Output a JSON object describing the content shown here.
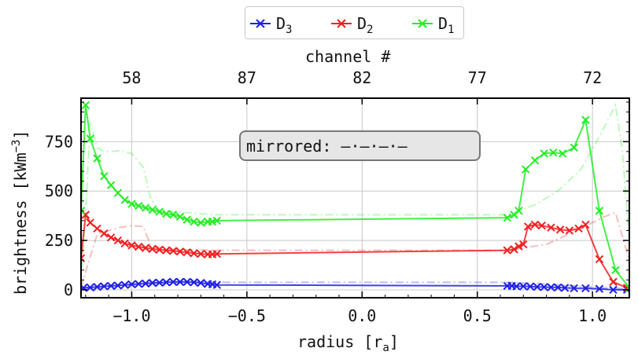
{
  "chart_data": {
    "type": "line",
    "xlabel_main": "radius [r",
    "xlabel_sub": "a",
    "xlabel_close": "]",
    "ylabel_main": "brightness [kWm",
    "ylabel_sup": "−3",
    "ylabel_close": "]",
    "top_axis_label": "channel #",
    "xlim": [
      -1.22,
      1.16
    ],
    "ylim": [
      -40,
      970
    ],
    "x_ticks": [
      -1.0,
      -0.5,
      0.0,
      0.5,
      1.0
    ],
    "x_tick_labels": [
      "−1.0",
      "−0.5",
      "0.0",
      "0.5",
      "1.0"
    ],
    "y_ticks": [
      0,
      250,
      500,
      750
    ],
    "y_tick_labels": [
      "0",
      "250",
      "500",
      "750"
    ],
    "top_ticks": [
      -1.0,
      -0.5,
      0.0,
      0.5,
      1.0
    ],
    "top_tick_labels": [
      "58",
      "87",
      "82",
      "77",
      "72"
    ],
    "grid": true,
    "legend_placement": "top-center, above plot",
    "annotation": "mirrored: —·—·—·—",
    "series": [
      {
        "name": "D3",
        "label_base": "D",
        "label_sub": "3",
        "color": "#1f1fe6",
        "x": [
          -1.21,
          -1.18,
          -1.15,
          -1.12,
          -1.09,
          -1.06,
          -1.03,
          -1.0,
          -0.97,
          -0.94,
          -0.91,
          -0.88,
          -0.85,
          -0.82,
          -0.79,
          -0.76,
          -0.73,
          -0.7,
          -0.67,
          -0.65,
          -0.63,
          0.63,
          0.65,
          0.67,
          0.7,
          0.73,
          0.76,
          0.79,
          0.82,
          0.85,
          0.88,
          0.92,
          0.97,
          1.03,
          1.09,
          1.15
        ],
        "y": [
          10,
          12,
          15,
          18,
          20,
          22,
          25,
          28,
          30,
          32,
          35,
          36,
          38,
          40,
          40,
          40,
          38,
          35,
          30,
          28,
          25,
          20,
          20,
          18,
          18,
          17,
          15,
          14,
          13,
          12,
          10,
          8,
          8,
          5,
          0,
          0
        ],
        "mirror_x": [
          -1.22,
          -1.1,
          -1.0,
          -0.9,
          -0.8,
          -0.7,
          -0.63,
          0.63,
          0.75,
          0.85,
          0.95,
          1.05,
          1.16
        ],
        "mirror_y": [
          5,
          15,
          25,
          32,
          38,
          40,
          38,
          38,
          32,
          25,
          18,
          10,
          5
        ]
      },
      {
        "name": "D2",
        "label_base": "D",
        "label_sub": "2",
        "color": "#f02020",
        "x": [
          -1.22,
          -1.2,
          -1.18,
          -1.15,
          -1.12,
          -1.09,
          -1.06,
          -1.03,
          -1.0,
          -0.97,
          -0.94,
          -0.91,
          -0.88,
          -0.85,
          -0.82,
          -0.79,
          -0.76,
          -0.73,
          -0.7,
          -0.67,
          -0.65,
          -0.63,
          0.63,
          0.66,
          0.68,
          0.7,
          0.72,
          0.75,
          0.78,
          0.82,
          0.86,
          0.9,
          0.94,
          0.97,
          1.03,
          1.09,
          1.15
        ],
        "y": [
          160,
          380,
          340,
          310,
          285,
          265,
          250,
          235,
          225,
          218,
          212,
          207,
          203,
          200,
          197,
          194,
          190,
          185,
          182,
          180,
          180,
          182,
          200,
          205,
          220,
          230,
          320,
          330,
          325,
          315,
          305,
          300,
          310,
          330,
          155,
          40,
          10
        ],
        "mirror_x": [
          -1.22,
          -1.19,
          -1.15,
          -1.1,
          -1.05,
          -1.0,
          -0.95,
          -0.92,
          -0.85,
          -0.63,
          0.63,
          0.8,
          0.95,
          1.05,
          1.1,
          1.16
        ],
        "mirror_y": [
          10,
          130,
          280,
          300,
          315,
          325,
          320,
          230,
          205,
          200,
          200,
          230,
          310,
          370,
          390,
          150
        ],
        "mirror_light": true
      },
      {
        "name": "D1",
        "label_base": "D",
        "label_sub": "1",
        "color": "#22ee22",
        "x": [
          -1.22,
          -1.2,
          -1.18,
          -1.15,
          -1.12,
          -1.09,
          -1.06,
          -1.03,
          -1.0,
          -0.97,
          -0.94,
          -0.91,
          -0.88,
          -0.85,
          -0.82,
          -0.79,
          -0.76,
          -0.73,
          -0.7,
          -0.67,
          -0.65,
          -0.63,
          0.63,
          0.66,
          0.68,
          0.71,
          0.75,
          0.79,
          0.83,
          0.87,
          0.92,
          0.97,
          1.03,
          1.1,
          1.16
        ],
        "y": [
          400,
          935,
          765,
          665,
          575,
          530,
          490,
          455,
          435,
          425,
          415,
          405,
          395,
          385,
          380,
          370,
          355,
          345,
          340,
          345,
          345,
          350,
          365,
          380,
          400,
          610,
          655,
          690,
          695,
          690,
          720,
          860,
          400,
          100,
          10
        ],
        "mirror_x": [
          -1.22,
          -1.2,
          -1.18,
          -1.15,
          -1.12,
          -1.09,
          -1.05,
          -1.0,
          -0.95,
          -0.92,
          -0.88,
          -0.63,
          0.63,
          0.75,
          0.85,
          0.95,
          1.05,
          1.1,
          1.13,
          1.16
        ],
        "mirror_y": [
          30,
          400,
          850,
          720,
          700,
          700,
          705,
          690,
          620,
          470,
          400,
          380,
          380,
          430,
          500,
          610,
          820,
          935,
          700,
          250
        ],
        "mirror_light": true
      }
    ]
  }
}
